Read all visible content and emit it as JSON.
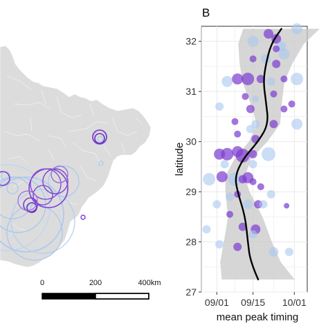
{
  "figure": {
    "panel_label": "B",
    "scale_bar": {
      "labels": [
        "0",
        "200",
        "400km"
      ]
    }
  },
  "colors": {
    "map_fill": "#dcdcdc",
    "map_border": "#ffffff",
    "purple": "#7e3fd0",
    "light_blue": "#a9c8ee",
    "smooth_line": "#000000",
    "ci_band": "#c8c8c8",
    "panel_bg": "#ffffff",
    "grid": "#ebebeb"
  },
  "chart_data": {
    "type": "scatter",
    "xlabel": "mean peak timing",
    "ylabel": "latitude",
    "x_ticks": [
      "09/01",
      "09/15",
      "10/01"
    ],
    "y_ticks": [
      "27",
      "28",
      "29",
      "30",
      "31",
      "32"
    ],
    "xlim": [
      "2019-08-26",
      "2019-10-06"
    ],
    "ylim": [
      27,
      32.3
    ],
    "grid": true,
    "points": [
      {
        "x": "2019-09-21",
        "y": 32.15,
        "color": "purple",
        "size": 7
      },
      {
        "x": "2019-10-02",
        "y": 32.25,
        "color": "light_blue",
        "size": 8
      },
      {
        "x": "2019-09-24",
        "y": 32.05,
        "color": "purple",
        "size": 7
      },
      {
        "x": "2019-09-15",
        "y": 32.0,
        "color": "light_blue",
        "size": 8
      },
      {
        "x": "2019-09-26",
        "y": 31.9,
        "color": "light_blue",
        "size": 7
      },
      {
        "x": "2019-09-24",
        "y": 31.85,
        "color": "purple",
        "size": 5
      },
      {
        "x": "2019-09-15",
        "y": 31.65,
        "color": "purple",
        "size": 5
      },
      {
        "x": "2019-09-27",
        "y": 31.75,
        "color": "light_blue",
        "size": 8
      },
      {
        "x": "2019-09-20",
        "y": 31.65,
        "color": "light_blue",
        "size": 7
      },
      {
        "x": "2019-09-24",
        "y": 31.55,
        "color": "purple",
        "size": 6
      },
      {
        "x": "2019-09-05",
        "y": 31.2,
        "color": "light_blue",
        "size": 8
      },
      {
        "x": "2019-09-09",
        "y": 31.25,
        "color": "purple",
        "size": 8
      },
      {
        "x": "2019-09-13",
        "y": 31.25,
        "color": "purple",
        "size": 9
      },
      {
        "x": "2019-09-18",
        "y": 31.25,
        "color": "purple",
        "size": 6
      },
      {
        "x": "2019-09-22",
        "y": 31.2,
        "color": "light_blue",
        "size": 6
      },
      {
        "x": "2019-09-27",
        "y": 31.25,
        "color": "purple",
        "size": 5
      },
      {
        "x": "2019-10-02",
        "y": 31.25,
        "color": "light_blue",
        "size": 9
      },
      {
        "x": "2019-09-12",
        "y": 30.9,
        "color": "purple",
        "size": 5
      },
      {
        "x": "2019-09-16",
        "y": 30.85,
        "color": "light_blue",
        "size": 5
      },
      {
        "x": "2019-09-23",
        "y": 30.95,
        "color": "purple",
        "size": 5
      },
      {
        "x": "2019-09-02",
        "y": 30.7,
        "color": "light_blue",
        "size": 6
      },
      {
        "x": "2019-09-14",
        "y": 30.65,
        "color": "purple",
        "size": 6
      },
      {
        "x": "2019-09-27",
        "y": 30.65,
        "color": "purple",
        "size": 5
      },
      {
        "x": "2019-09-30",
        "y": 30.75,
        "color": "purple",
        "size": 5
      },
      {
        "x": "2019-09-08",
        "y": 30.4,
        "color": "purple",
        "size": 5
      },
      {
        "x": "2019-09-09",
        "y": 30.15,
        "color": "purple",
        "size": 5
      },
      {
        "x": "2019-09-14",
        "y": 30.25,
        "color": "light_blue",
        "size": 6
      },
      {
        "x": "2019-09-16",
        "y": 30.35,
        "color": "light_blue",
        "size": 6
      },
      {
        "x": "2019-09-23",
        "y": 30.35,
        "color": "purple",
        "size": 6
      },
      {
        "x": "2019-10-02",
        "y": 30.35,
        "color": "light_blue",
        "size": 8
      },
      {
        "x": "2019-09-16",
        "y": 30.05,
        "color": "purple",
        "size": 6
      },
      {
        "x": "2019-09-02",
        "y": 29.75,
        "color": "purple",
        "size": 8
      },
      {
        "x": "2019-09-05",
        "y": 29.75,
        "color": "purple",
        "size": 9
      },
      {
        "x": "2019-09-09",
        "y": 29.8,
        "color": "purple",
        "size": 8
      },
      {
        "x": "2019-09-11",
        "y": 29.72,
        "color": "purple",
        "size": 10
      },
      {
        "x": "2019-09-15",
        "y": 29.75,
        "color": "purple",
        "size": 6
      },
      {
        "x": "2019-09-21",
        "y": 29.75,
        "color": "light_blue",
        "size": 10
      },
      {
        "x": "2019-09-04",
        "y": 29.55,
        "color": "light_blue",
        "size": 6
      },
      {
        "x": "2019-09-15",
        "y": 29.55,
        "color": "light_blue",
        "size": 6
      },
      {
        "x": "2019-08-29",
        "y": 29.25,
        "color": "light_blue",
        "size": 9
      },
      {
        "x": "2019-09-03",
        "y": 29.3,
        "color": "purple",
        "size": 8
      },
      {
        "x": "2019-09-08",
        "y": 29.25,
        "color": "light_blue",
        "size": 10
      },
      {
        "x": "2019-09-11",
        "y": 29.25,
        "color": "purple",
        "size": 6
      },
      {
        "x": "2019-09-13",
        "y": 29.28,
        "color": "purple",
        "size": 8
      },
      {
        "x": "2019-09-15",
        "y": 29.2,
        "color": "purple",
        "size": 5
      },
      {
        "x": "2019-09-18",
        "y": 29.1,
        "color": "purple",
        "size": 5
      },
      {
        "x": "2019-09-06",
        "y": 28.9,
        "color": "light_blue",
        "size": 6
      },
      {
        "x": "2019-09-09",
        "y": 28.95,
        "color": "purple",
        "size": 5
      },
      {
        "x": "2019-09-22",
        "y": 28.95,
        "color": "light_blue",
        "size": 6
      },
      {
        "x": "2019-09-01",
        "y": 28.75,
        "color": "light_blue",
        "size": 6
      },
      {
        "x": "2019-09-13",
        "y": 28.75,
        "color": "light_blue",
        "size": 7
      },
      {
        "x": "2019-09-17",
        "y": 28.75,
        "color": "purple",
        "size": 6
      },
      {
        "x": "2019-09-19",
        "y": 28.75,
        "color": "light_blue",
        "size": 6
      },
      {
        "x": "2019-09-28",
        "y": 28.72,
        "color": "purple",
        "size": 4
      },
      {
        "x": "2019-09-06",
        "y": 28.55,
        "color": "purple",
        "size": 5
      },
      {
        "x": "2019-08-28",
        "y": 28.25,
        "color": "light_blue",
        "size": 6
      },
      {
        "x": "2019-09-11",
        "y": 28.3,
        "color": "purple",
        "size": 6
      },
      {
        "x": "2019-09-16",
        "y": 28.25,
        "color": "purple",
        "size": 7
      },
      {
        "x": "2019-09-15",
        "y": 28.15,
        "color": "light_blue",
        "size": 6
      },
      {
        "x": "2019-09-02",
        "y": 27.95,
        "color": "light_blue",
        "size": 6
      },
      {
        "x": "2019-09-09",
        "y": 27.9,
        "color": "purple",
        "size": 6
      },
      {
        "x": "2019-09-23",
        "y": 27.8,
        "color": "light_blue",
        "size": 7
      },
      {
        "x": "2019-09-29",
        "y": 27.8,
        "color": "light_blue",
        "size": 6
      }
    ],
    "smooth_line": [
      {
        "x": "2019-09-17",
        "y": 27.25
      },
      {
        "x": "2019-09-14",
        "y": 27.6
      },
      {
        "x": "2019-09-13",
        "y": 28.0
      },
      {
        "x": "2019-09-12",
        "y": 28.5
      },
      {
        "x": "2019-09-09",
        "y": 29.0
      },
      {
        "x": "2019-09-08",
        "y": 29.3
      },
      {
        "x": "2019-09-11",
        "y": 29.65
      },
      {
        "x": "2019-09-17",
        "y": 30.0
      },
      {
        "x": "2019-09-21",
        "y": 30.35
      },
      {
        "x": "2019-09-20",
        "y": 30.8
      },
      {
        "x": "2019-09-19",
        "y": 31.2
      },
      {
        "x": "2019-09-20",
        "y": 31.55
      },
      {
        "x": "2019-09-22",
        "y": 31.95
      },
      {
        "x": "2019-09-26",
        "y": 32.25
      }
    ]
  }
}
